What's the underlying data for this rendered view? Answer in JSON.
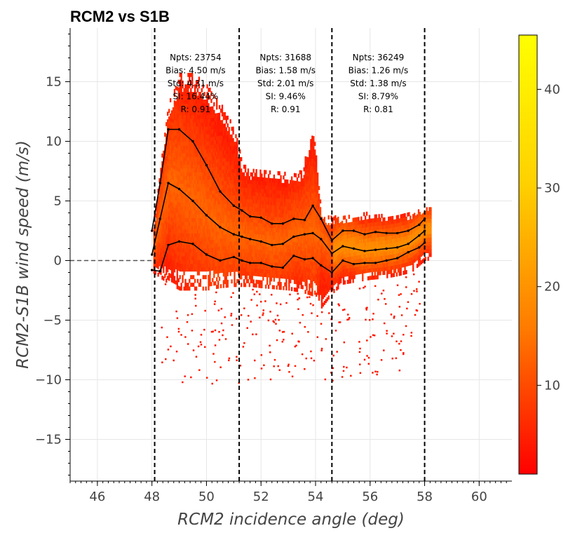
{
  "chart_data": {
    "type": "heatmap",
    "title": "RCM2 vs S1B",
    "xlabel": "RCM2 incidence angle (deg)",
    "ylabel": "RCM2-S1B wind speed (m/s)",
    "xlim": [
      45,
      61.2
    ],
    "ylim": [
      -18.5,
      19.5
    ],
    "x_ticks": [
      46,
      48,
      50,
      52,
      54,
      56,
      58,
      60
    ],
    "y_ticks": [
      -15,
      -10,
      -5,
      0,
      5,
      10,
      15
    ],
    "grid": true,
    "zero_line": 0,
    "boundaries": [
      48.1,
      51.2,
      54.6,
      58.0
    ],
    "colorbar": {
      "min": 1,
      "max": 45.5,
      "ticks": [
        10,
        20,
        30,
        40
      ],
      "colors": [
        "#ff0000",
        "#ff7a00",
        "#ffd000",
        "#ffff00"
      ]
    },
    "stat_boxes": [
      {
        "center_x": 49.6,
        "lines": [
          "Npts: 23754",
          "Bias: 4.50 m/s",
          "Std: 4.31 m/s",
          "SI: 16.44%",
          "R: 0.91"
        ]
      },
      {
        "center_x": 52.9,
        "lines": [
          "Npts: 31688",
          "Bias: 1.58 m/s",
          "Std: 2.01 m/s",
          "SI: 9.46%",
          "R: 0.91"
        ]
      },
      {
        "center_x": 56.3,
        "lines": [
          "Npts: 36249",
          "Bias: 1.26 m/s",
          "Std: 1.38 m/s",
          "SI: 8.79%",
          "R: 0.81"
        ]
      }
    ],
    "envelope": {
      "x": [
        48.0,
        48.3,
        48.6,
        49.0,
        49.5,
        50.0,
        50.5,
        51.0,
        51.3,
        51.6,
        52.0,
        52.5,
        53.0,
        53.5,
        53.9,
        54.2,
        54.6,
        55.0,
        55.5,
        56.0,
        56.5,
        57.0,
        57.5,
        58.0,
        58.2
      ],
      "upper": [
        1.5,
        8,
        13,
        15.5,
        15.5,
        14.5,
        13,
        11,
        8,
        7.5,
        7.5,
        7.5,
        7,
        7.5,
        11.5,
        3.5,
        3.5,
        3.5,
        3.8,
        3.8,
        3.6,
        3.6,
        3.8,
        4.4,
        4.4
      ],
      "lower": [
        -1,
        -1.5,
        -2,
        -2.5,
        -2.5,
        -2.5,
        -2.3,
        -2.2,
        -2.2,
        -2.2,
        -2.3,
        -2.4,
        -2.5,
        -2.7,
        -3,
        -4,
        -2.8,
        -2,
        -1.8,
        -1.6,
        -1.5,
        -1.3,
        -1,
        0,
        0
      ]
    },
    "series": [
      {
        "x": [
          48.0,
          48.3,
          48.6,
          49.0,
          49.5,
          50.0,
          50.5,
          51.0,
          51.3,
          51.6,
          52.0,
          52.4,
          52.8,
          53.2,
          53.6,
          53.9,
          54.2,
          54.6,
          55.0,
          55.4,
          55.8,
          56.2,
          56.6,
          57.0,
          57.4,
          57.8,
          58.0
        ],
        "y": [
          2.5,
          6.5,
          11.0,
          11.0,
          10.0,
          8.0,
          5.8,
          4.6,
          4.2,
          3.7,
          3.6,
          3.1,
          3.1,
          3.5,
          3.4,
          4.6,
          3.5,
          1.7,
          2.5,
          2.5,
          2.2,
          2.4,
          2.3,
          2.3,
          2.5,
          3.0,
          3.5
        ]
      },
      {
        "x": [
          48.0,
          48.3,
          48.6,
          49.0,
          49.5,
          50.0,
          50.5,
          51.0,
          51.3,
          51.6,
          52.0,
          52.4,
          52.8,
          53.2,
          53.6,
          53.9,
          54.2,
          54.6,
          55.0,
          55.4,
          55.8,
          56.2,
          56.6,
          57.0,
          57.4,
          57.8,
          58.0
        ],
        "y": [
          0.5,
          3.5,
          6.5,
          6.0,
          5.0,
          3.8,
          2.8,
          2.2,
          2.0,
          1.8,
          1.6,
          1.3,
          1.4,
          2.0,
          2.2,
          2.3,
          1.8,
          0.6,
          1.2,
          1.0,
          0.8,
          0.9,
          1.0,
          1.1,
          1.4,
          2.1,
          2.5
        ]
      },
      {
        "x": [
          48.0,
          48.3,
          48.6,
          49.0,
          49.5,
          50.0,
          50.5,
          51.0,
          51.3,
          51.6,
          52.0,
          52.4,
          52.8,
          53.2,
          53.6,
          53.9,
          54.2,
          54.6,
          55.0,
          55.4,
          55.8,
          56.2,
          56.6,
          57.0,
          57.4,
          57.8,
          58.0
        ],
        "y": [
          -0.8,
          -0.9,
          1.3,
          1.6,
          1.4,
          0.5,
          0.0,
          0.3,
          0.0,
          -0.2,
          -0.2,
          -0.5,
          -0.6,
          0.4,
          0.1,
          0.2,
          -0.4,
          -1.0,
          0.0,
          -0.3,
          -0.2,
          -0.2,
          0.0,
          0.2,
          0.7,
          1.1,
          1.5
        ]
      }
    ]
  }
}
